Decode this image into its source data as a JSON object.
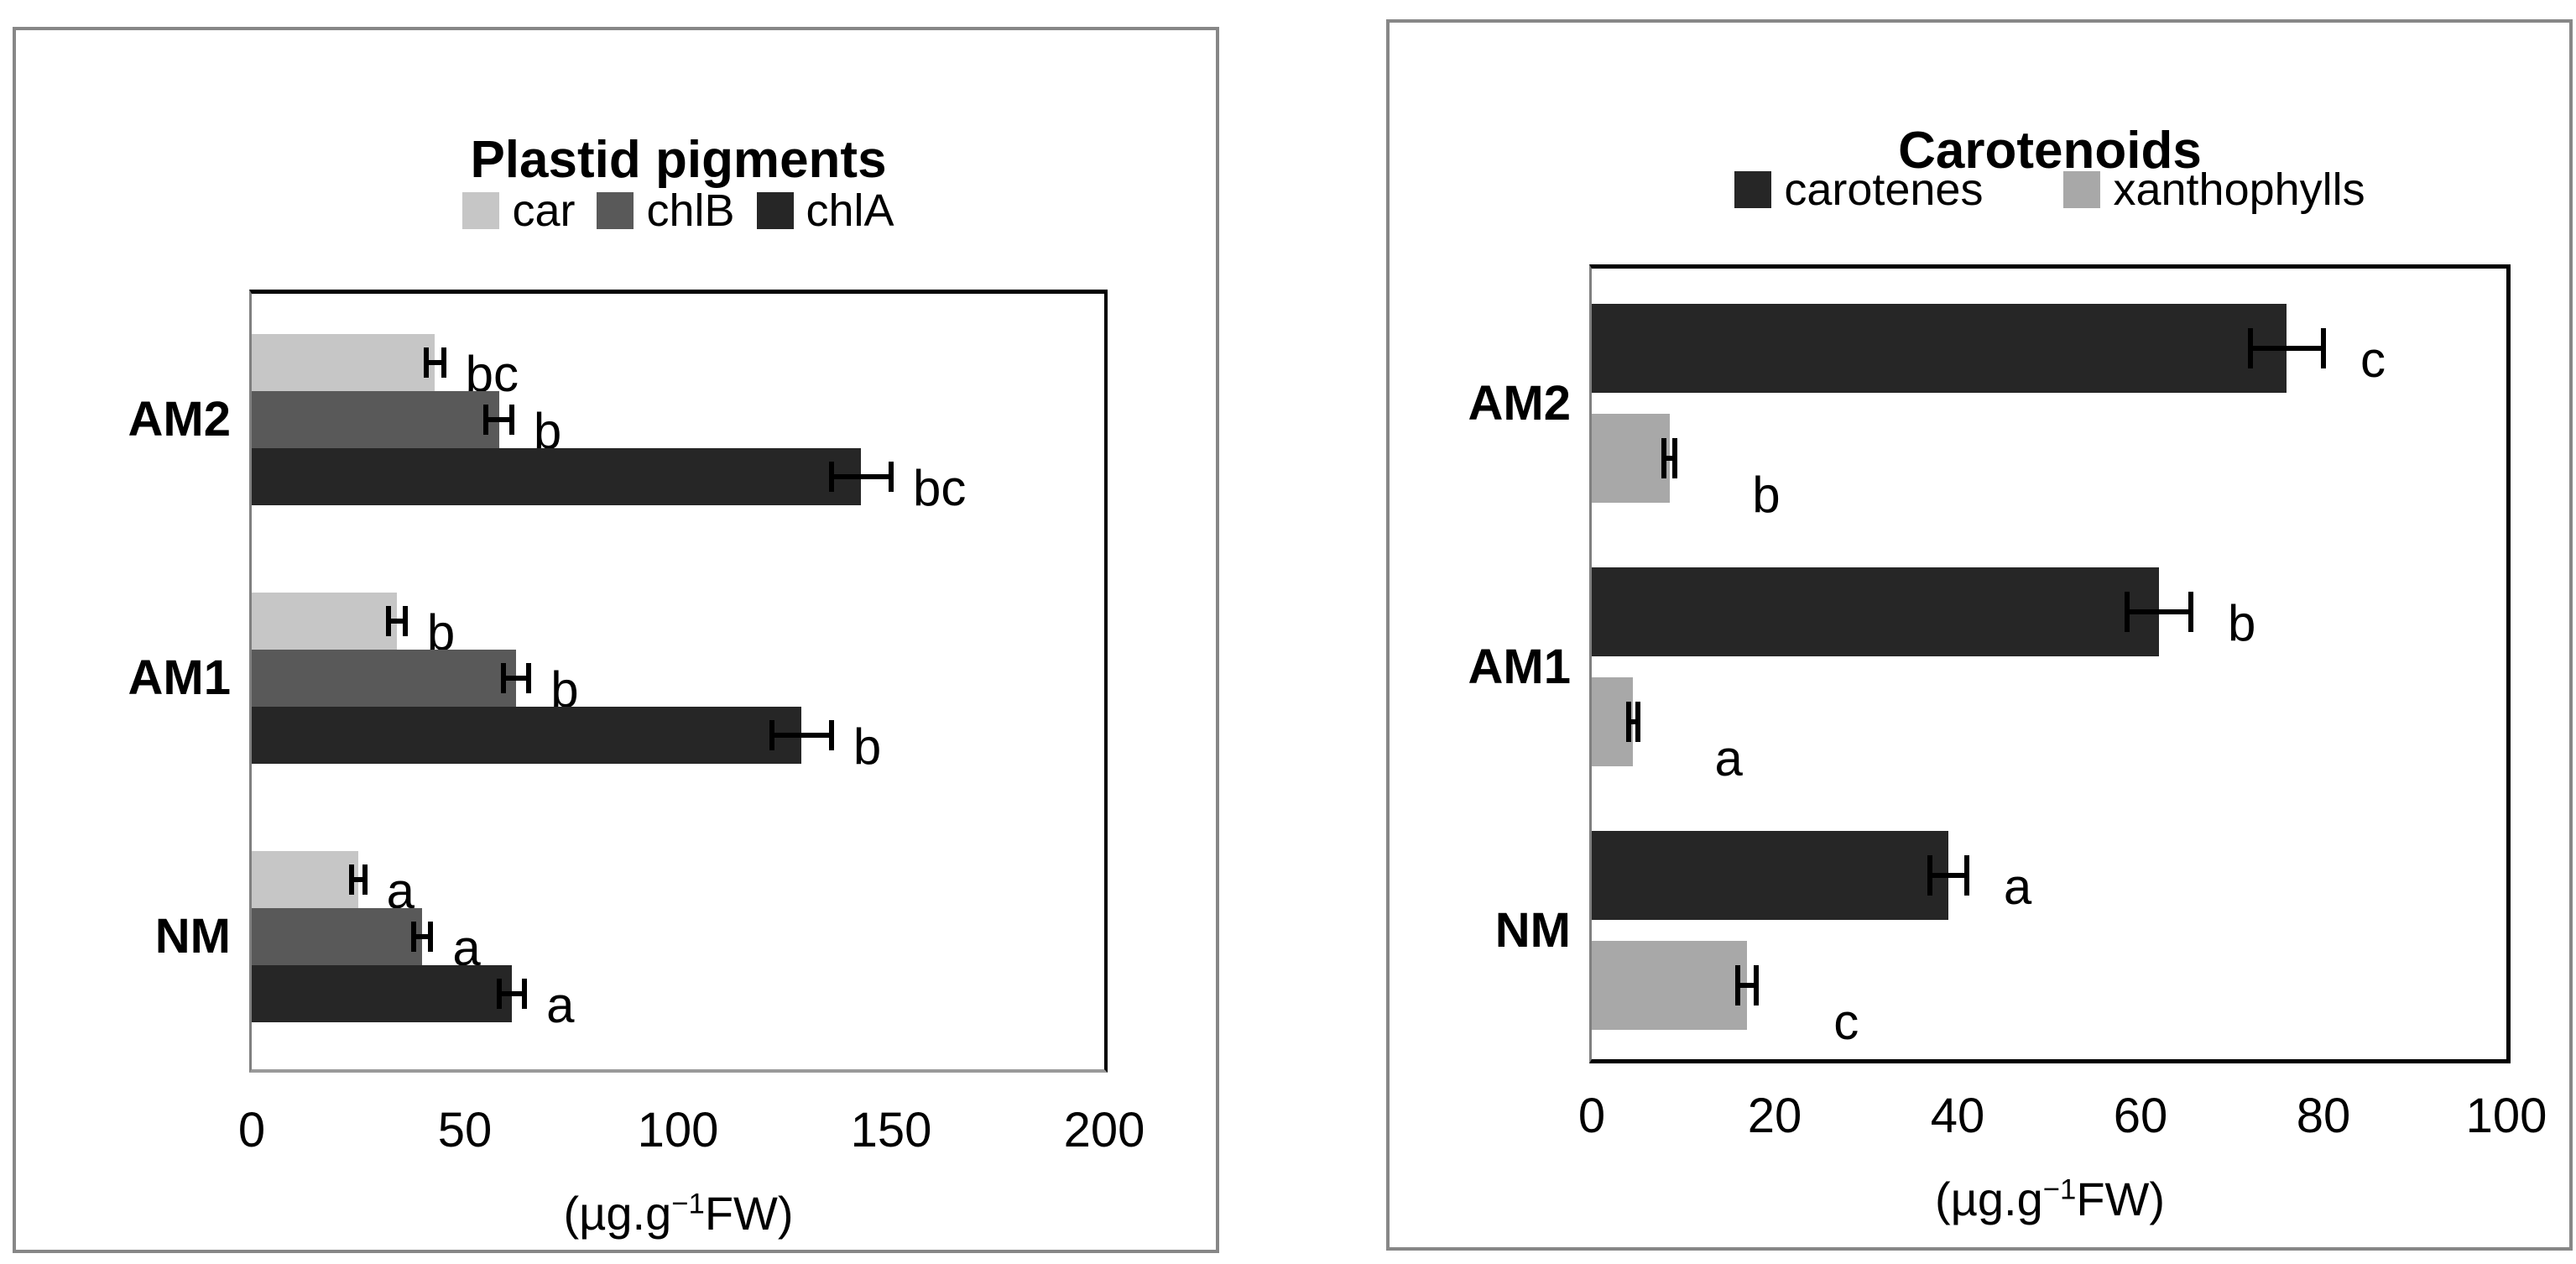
{
  "figure": {
    "panel_count": 2,
    "background_color": "#ffffff",
    "panel_border_color": "#878787"
  },
  "chart_data": [
    {
      "type": "bar",
      "orientation": "horizontal",
      "title": "Plastid pigments",
      "categories": [
        "AM2",
        "AM1",
        "NM"
      ],
      "series": [
        {
          "name": "car",
          "color": "#c6c6c6",
          "values": [
            43,
            34,
            25
          ],
          "errors": [
            2,
            2,
            1.5
          ],
          "sig_letters": [
            "bc",
            "b",
            "a"
          ]
        },
        {
          "name": "chlB",
          "color": "#595959",
          "values": [
            58,
            62,
            40
          ],
          "errors": [
            3,
            3,
            2
          ],
          "sig_letters": [
            "b",
            "b",
            "a"
          ]
        },
        {
          "name": "chlA",
          "color": "#262626",
          "values": [
            143,
            129,
            61
          ],
          "errors": [
            7,
            7,
            3
          ],
          "sig_letters": [
            "bc",
            "b",
            "a"
          ]
        }
      ],
      "xlim": [
        0,
        200
      ],
      "xticks": [
        "0",
        "50",
        "100",
        "150",
        "200"
      ],
      "xlabel_prefix": "(µg.g",
      "xlabel_superscript": "−1",
      "xlabel_suffix": "FW)",
      "legend_position": "top",
      "grid": "off",
      "series_draw_order": "top to bottom within each category: car, chlB, chlA"
    },
    {
      "type": "bar",
      "orientation": "horizontal",
      "title": "Carotenoids",
      "categories": [
        "AM2",
        "AM1",
        "NM"
      ],
      "series": [
        {
          "name": "carotenes",
          "color": "#262626",
          "values": [
            76,
            62,
            39
          ],
          "errors": [
            4,
            3.5,
            2
          ],
          "sig_letters": [
            "c",
            "b",
            "a"
          ]
        },
        {
          "name": "xanthophylls",
          "color": "#a8a8a8",
          "values": [
            8.5,
            4.5,
            17
          ],
          "errors": [
            0.6,
            0.5,
            1
          ],
          "sig_letters": [
            "b",
            "a",
            "c"
          ]
        }
      ],
      "xlim": [
        0,
        100
      ],
      "xticks": [
        "0",
        "20",
        "40",
        "60",
        "80",
        "100"
      ],
      "xlabel_prefix": "(µg.g",
      "xlabel_superscript": "−1",
      "xlabel_suffix": "FW)",
      "legend_position": "top",
      "grid": "off",
      "series_draw_order": "top to bottom within each category: carotenes, xanthophylls"
    }
  ]
}
